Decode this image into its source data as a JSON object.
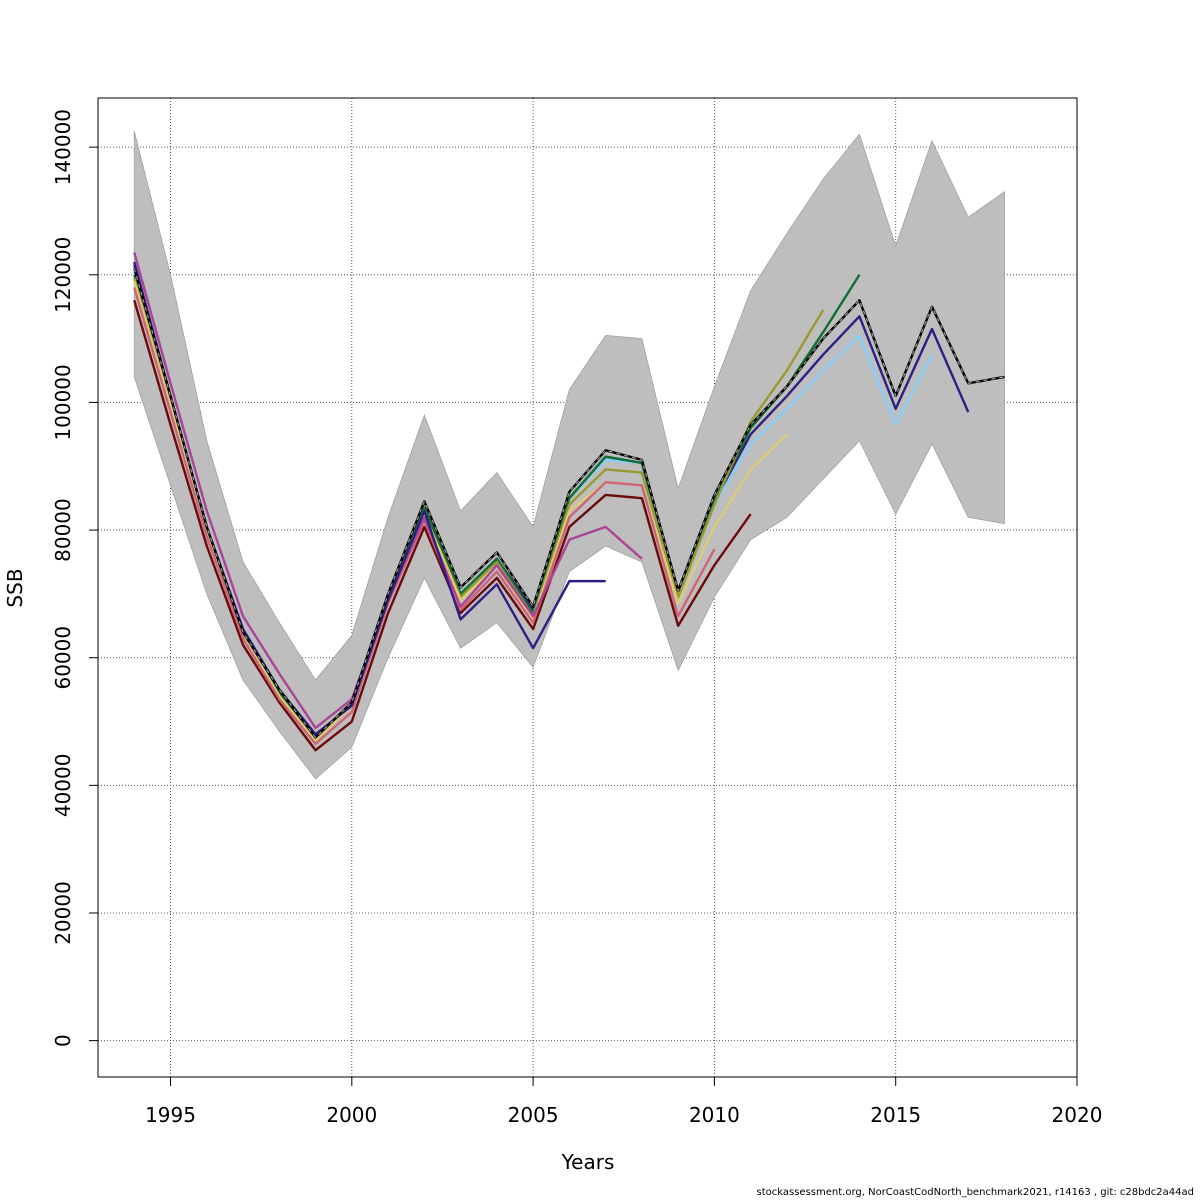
{
  "chart_data": {
    "type": "line",
    "xlabel": "Years",
    "ylabel": "SSB",
    "xlim": [
      1993,
      2020
    ],
    "ylim": [
      -5700,
      147700
    ],
    "xticks": [
      1995,
      2000,
      2005,
      2010,
      2015,
      2020
    ],
    "yticks": [
      0,
      20000,
      40000,
      60000,
      80000,
      100000,
      120000,
      140000
    ],
    "grid": true,
    "legend": "none",
    "confidence_band": {
      "color": "#bebebe",
      "years": [
        1994,
        1995,
        1996,
        1997,
        1998,
        1999,
        2000,
        2001,
        2002,
        2003,
        2004,
        2005,
        2006,
        2007,
        2008,
        2009,
        2010,
        2011,
        2012,
        2013,
        2014,
        2015,
        2016,
        2017,
        2018
      ],
      "upper": [
        142500,
        120000,
        94000,
        75000,
        65500,
        56500,
        63500,
        82000,
        98000,
        83000,
        89000,
        80500,
        102000,
        110500,
        110000,
        86500,
        102500,
        117500,
        126500,
        135000,
        142000,
        124500,
        141000,
        129000,
        133000
      ],
      "lower": [
        104000,
        87000,
        70000,
        56500,
        48500,
        41000,
        46000,
        60000,
        72500,
        61500,
        65500,
        58500,
        73500,
        77500,
        75000,
        58000,
        69500,
        78500,
        82000,
        88000,
        94000,
        82500,
        93500,
        82000,
        81000
      ]
    },
    "series": [
      {
        "color": "#000000",
        "dashed": true,
        "years": [
          1994,
          1995,
          1996,
          1997,
          1998,
          1999,
          2000,
          2001,
          2002,
          2003,
          2004,
          2005,
          2006,
          2007,
          2008,
          2009,
          2010,
          2011,
          2012,
          2013,
          2014,
          2015,
          2016,
          2017,
          2018
        ],
        "values": [
          121000,
          101000,
          80500,
          64000,
          55000,
          47500,
          53000,
          70000,
          84500,
          71000,
          76500,
          68000,
          86000,
          92500,
          91000,
          70500,
          85500,
          96500,
          102500,
          110000,
          116000,
          101000,
          115000,
          103000,
          104000
        ]
      },
      {
        "color": "#2e1f85",
        "years": [
          1994,
          1995,
          1996,
          1997,
          1998,
          1999,
          2000,
          2001,
          2002,
          2003,
          2004,
          2005,
          2006,
          2007,
          2008,
          2009,
          2010,
          2011,
          2012,
          2013,
          2014,
          2015,
          2016,
          2017
        ],
        "values": [
          122000,
          101000,
          80000,
          64000,
          54500,
          47000,
          52500,
          69500,
          83000,
          70000,
          75500,
          67500,
          85000,
          91500,
          90500,
          70000,
          84500,
          95000,
          101000,
          107500,
          113500,
          99000,
          111500,
          98500
        ]
      },
      {
        "color": "#87cefa",
        "years": [
          1994,
          1995,
          1996,
          1997,
          1998,
          1999,
          2000,
          2001,
          2002,
          2003,
          2004,
          2005,
          2006,
          2007,
          2008,
          2009,
          2010,
          2011,
          2012,
          2013,
          2014,
          2015,
          2016
        ],
        "values": [
          120500,
          100500,
          80000,
          64000,
          54500,
          47500,
          53000,
          69500,
          83500,
          70000,
          75000,
          67000,
          85000,
          91000,
          90500,
          70000,
          84000,
          93500,
          99000,
          105000,
          110500,
          96500,
          107500
        ]
      },
      {
        "color": "#0d7133",
        "years": [
          1994,
          1995,
          1996,
          1997,
          1998,
          1999,
          2000,
          2001,
          2002,
          2003,
          2004,
          2005,
          2006,
          2007,
          2008,
          2009,
          2010,
          2011,
          2012,
          2013,
          2014
        ],
        "values": [
          120000,
          100500,
          80000,
          64000,
          54500,
          47000,
          53000,
          69500,
          83500,
          70000,
          75500,
          67000,
          85000,
          91500,
          90500,
          70500,
          84500,
          96000,
          102500,
          111000,
          120000
        ]
      },
      {
        "color": "#999933",
        "years": [
          1994,
          1995,
          1996,
          1997,
          1998,
          1999,
          2000,
          2001,
          2002,
          2003,
          2004,
          2005,
          2006,
          2007,
          2008,
          2009,
          2010,
          2011,
          2012,
          2013
        ],
        "values": [
          119500,
          100000,
          79500,
          63500,
          54000,
          47000,
          52500,
          69000,
          82500,
          69500,
          75000,
          66500,
          84000,
          89500,
          89000,
          69500,
          84000,
          97000,
          105000,
          114500
        ]
      },
      {
        "color": "#ddcc77",
        "years": [
          1994,
          1995,
          1996,
          1997,
          1998,
          1999,
          2000,
          2001,
          2002,
          2003,
          2004,
          2005,
          2006,
          2007,
          2008,
          2009,
          2010,
          2011,
          2012
        ],
        "values": [
          119000,
          99500,
          79500,
          63500,
          54000,
          47000,
          52500,
          68500,
          82500,
          69000,
          74500,
          66000,
          83000,
          87500,
          87000,
          68500,
          80500,
          89500,
          95000
        ]
      },
      {
        "color": "#6b0a0a",
        "years": [
          1994,
          1995,
          1996,
          1997,
          1998,
          1999,
          2000,
          2001,
          2002,
          2003,
          2004,
          2005,
          2006,
          2007,
          2008,
          2009,
          2010,
          2011
        ],
        "values": [
          116000,
          96500,
          77500,
          62000,
          53000,
          45500,
          50000,
          67000,
          80500,
          67000,
          72500,
          64500,
          80500,
          85500,
          85000,
          65000,
          74500,
          82500
        ]
      },
      {
        "color": "#cc6677",
        "years": [
          1994,
          1995,
          1996,
          1997,
          1998,
          1999,
          2000,
          2001,
          2002,
          2003,
          2004,
          2005,
          2006,
          2007,
          2008,
          2009,
          2010
        ],
        "values": [
          118000,
          98500,
          79000,
          63000,
          53500,
          46500,
          51500,
          68500,
          81500,
          67500,
          73500,
          65500,
          82000,
          87500,
          87000,
          66500,
          77000
        ]
      },
      {
        "color": "#aa4499",
        "years": [
          1994,
          1995,
          1996,
          1997,
          1998,
          1999,
          2000,
          2001,
          2002,
          2003,
          2004,
          2005,
          2006,
          2007,
          2008
        ],
        "values": [
          123500,
          103000,
          83000,
          66500,
          57500,
          49000,
          53500,
          69000,
          82000,
          68000,
          74500,
          66500,
          78500,
          80500,
          75500
        ]
      },
      {
        "color": "#2e1f85",
        "years": [
          1994,
          1995,
          1996,
          1997,
          1998,
          1999,
          2000,
          2001,
          2002,
          2003,
          2004,
          2005,
          2006,
          2007
        ],
        "values": [
          121500,
          101000,
          80500,
          64500,
          55000,
          48000,
          52500,
          69000,
          83000,
          66000,
          71500,
          61500,
          72000,
          72000
        ]
      }
    ]
  },
  "footer": {
    "credit": "stockassessment.org, NorCoastCodNorth_benchmark2021, r14163 , git: c28bdc2a44ad"
  }
}
